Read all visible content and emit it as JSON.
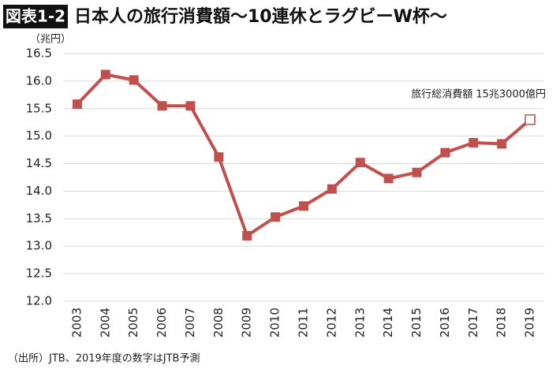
{
  "chart_data": {
    "type": "line",
    "figure_label": "図表1-2",
    "title": "日本人の旅行消費額〜10連休とラグビーW杯〜",
    "y_unit": "（兆円）",
    "annotation": "旅行総消費額 15兆3000億円",
    "source": "（出所）JTB、2019年度の数字はJTB予測",
    "categories": [
      "2003",
      "2004",
      "2005",
      "2006",
      "2007",
      "2008",
      "2009",
      "2010",
      "2011",
      "2012",
      "2013",
      "2014",
      "2015",
      "2016",
      "2017",
      "2018",
      "2019"
    ],
    "values": [
      15.58,
      16.12,
      16.02,
      15.55,
      15.55,
      14.62,
      13.19,
      13.53,
      13.73,
      14.04,
      14.52,
      14.23,
      14.34,
      14.7,
      14.88,
      14.86,
      15.3
    ],
    "color": "#c0504d",
    "ylim": [
      12,
      16.5
    ],
    "yticks": [
      {
        "value": 12,
        "label": "12.0"
      },
      12.5,
      {
        "value": 13,
        "label": "13.0"
      },
      13.5,
      {
        "value": 14,
        "label": "14.0"
      },
      14.5,
      {
        "value": 15,
        "label": "15.0"
      },
      15.5,
      {
        "value": 16,
        "label": "16.0"
      },
      16.5
    ],
    "grid": true
  }
}
